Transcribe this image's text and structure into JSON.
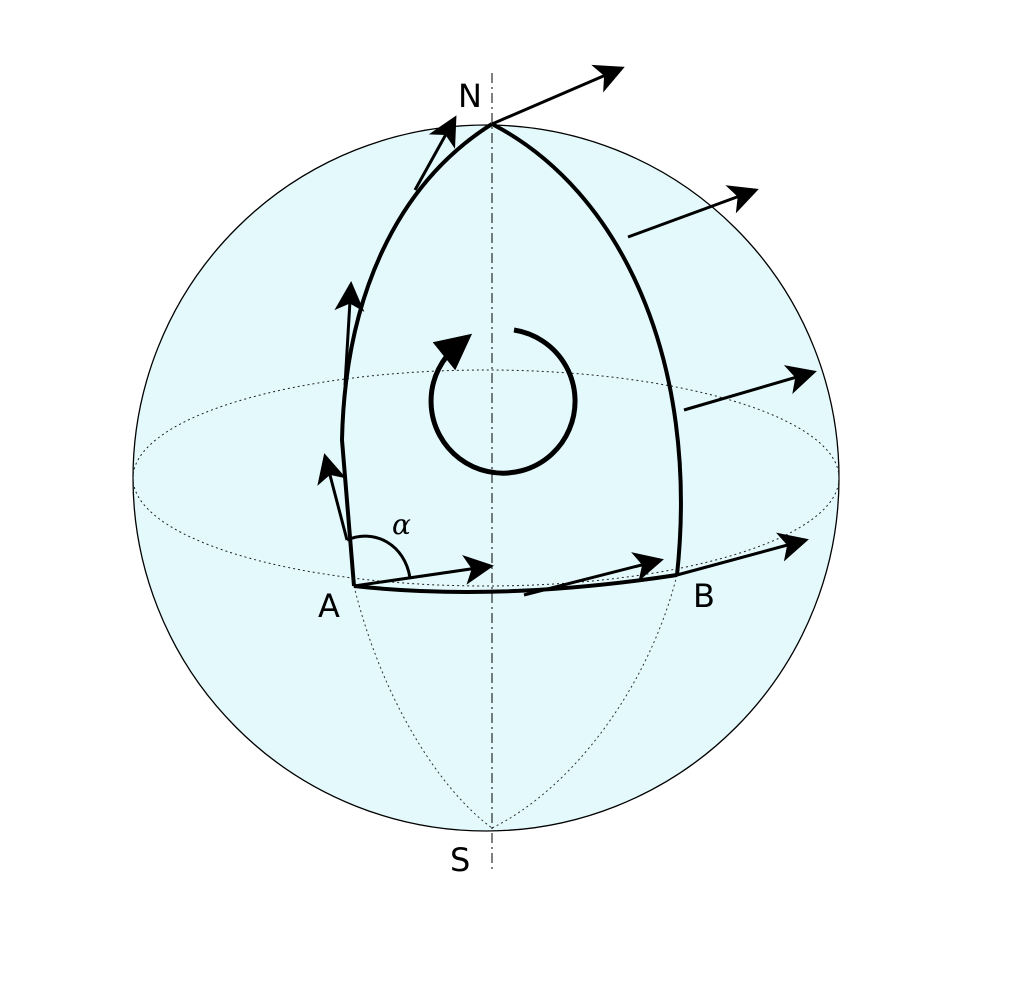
{
  "labels": {
    "north": "N",
    "south": "S",
    "point_a": "A",
    "point_b": "B",
    "angle": "α"
  },
  "colors": {
    "sphere_fill": "#e4f9fb",
    "stroke": "#000000"
  }
}
